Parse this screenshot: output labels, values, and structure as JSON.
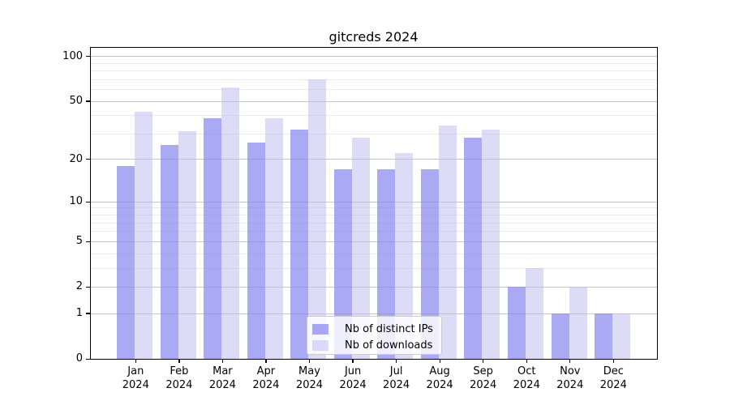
{
  "title": "gitcreds 2024",
  "chart_data": {
    "type": "bar",
    "title": "gitcreds 2024",
    "x_year": "2024",
    "categories": [
      "Jan",
      "Feb",
      "Mar",
      "Apr",
      "May",
      "Jun",
      "Jul",
      "Aug",
      "Sep",
      "Oct",
      "Nov",
      "Dec"
    ],
    "series": [
      {
        "name": "Nb of distinct IPs",
        "color": "rgba(132,132,239,0.7)",
        "values": [
          18,
          25,
          38,
          26,
          32,
          17,
          17,
          17,
          28,
          2,
          1,
          1
        ]
      },
      {
        "name": "Nb of downloads",
        "color": "rgba(185,185,240,0.5)",
        "values": [
          42,
          31,
          62,
          38,
          70,
          28,
          22,
          34,
          32,
          3,
          2,
          1
        ]
      }
    ],
    "yscale": "log1p",
    "ylim": [
      0,
      115
    ],
    "y_ticks": [
      {
        "label": "0",
        "value": 0
      },
      {
        "label": "1",
        "value": 1
      },
      {
        "label": "2",
        "value": 2
      },
      {
        "label": "5",
        "value": 5
      },
      {
        "label": "10",
        "value": 10
      },
      {
        "label": "20",
        "value": 20
      },
      {
        "label": "50",
        "value": 50
      },
      {
        "label": "100",
        "value": 100
      }
    ],
    "y_minor_gridlines": [
      3,
      4,
      6,
      7,
      8,
      9,
      30,
      40,
      60,
      70,
      80,
      90
    ],
    "grid": "horizontal-only",
    "legend_position": "inside-bottom-center",
    "colors": {
      "grid_major": "#c6c6c6",
      "grid_minor": "#eaeaea",
      "spine": "#000000",
      "background": "#ffffff",
      "text": "#000000"
    }
  }
}
